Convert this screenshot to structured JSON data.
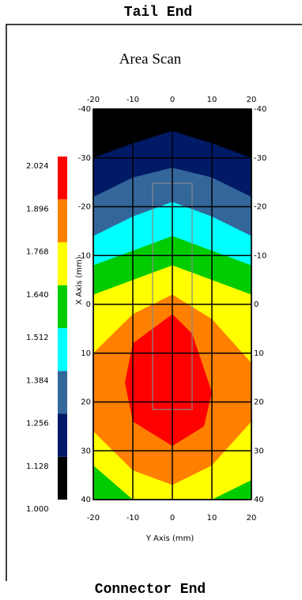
{
  "header": "Tail End",
  "footer": "Connector End",
  "chart_data": {
    "type": "contour",
    "title": "Area Scan",
    "x_label": "Y Axis (mm)",
    "y_label": "X Axis (mm)",
    "xlim": [
      -20,
      20
    ],
    "ylim": [
      -40,
      40
    ],
    "y_inverted": true,
    "xticks": [
      -20,
      -10,
      0,
      10,
      20
    ],
    "yticks": [
      -40,
      -30,
      -20,
      -10,
      0,
      10,
      20,
      30,
      40
    ],
    "grid": true,
    "background": "#000000",
    "colorbar": {
      "levels": [
        {
          "value": 1,
          "label": "1.000"
        },
        1.128,
        1.256,
        1.384,
        1.512,
        {
          "value": 1.64,
          "label": "1.640"
        },
        1.768,
        1.896,
        2.024
      ],
      "colors": [
        "#000000",
        "#001a66",
        "#336699",
        "#00ffff",
        "#00cc00",
        "#ffff00",
        "#ff8000",
        "#ff0000"
      ]
    },
    "regions": [
      {
        "color": "#001a66",
        "x": [
          -20,
          -10,
          0,
          10,
          20,
          20,
          -20
        ],
        "y": [
          -30,
          -33,
          -35.5,
          -33,
          -30,
          40,
          40
        ]
      },
      {
        "color": "#336699",
        "x": [
          -20,
          -10,
          0,
          10,
          20,
          20,
          -20
        ],
        "y": [
          -22,
          -26,
          -28,
          -26,
          -22,
          40,
          40
        ]
      },
      {
        "color": "#00ffff",
        "x": [
          -20,
          -10,
          0,
          10,
          20,
          20,
          -20
        ],
        "y": [
          -14,
          -18,
          -21,
          -18,
          -14,
          40,
          40
        ]
      },
      {
        "color": "#00cc00",
        "x": [
          -20,
          -10,
          0,
          10,
          20,
          20,
          -20
        ],
        "y": [
          -8,
          -11,
          -14,
          -11,
          -8,
          40,
          40
        ]
      },
      {
        "color": "#ffff00",
        "x": [
          -20,
          -10,
          0,
          10,
          20,
          20,
          10,
          -10,
          -20
        ],
        "y": [
          -2,
          -5,
          -8,
          -5,
          -2,
          36,
          40,
          40,
          33
        ]
      },
      {
        "color": "#ff8000",
        "x": [
          -20,
          -10,
          0,
          10,
          20,
          20,
          10,
          0,
          -10,
          -20
        ],
        "y": [
          10,
          2,
          -2,
          3,
          12,
          24,
          33,
          37,
          34,
          26
        ]
      },
      {
        "color": "#ff0000",
        "x": [
          -10,
          0,
          5,
          10,
          8,
          0,
          -10,
          -12
        ],
        "y": [
          8,
          2,
          6,
          18,
          25,
          29,
          24,
          16
        ]
      }
    ]
  }
}
